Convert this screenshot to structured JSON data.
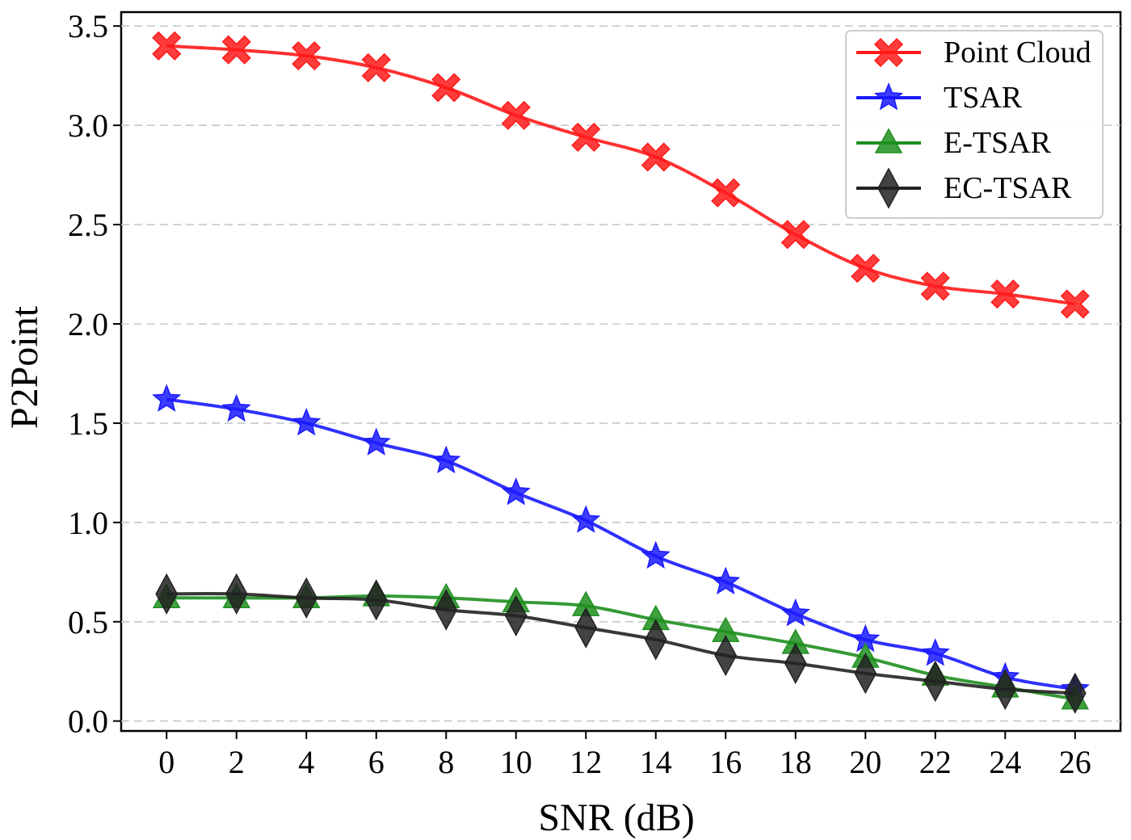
{
  "chart_data": {
    "type": "line",
    "title": "",
    "xlabel": "SNR (dB)",
    "ylabel": "P2Point",
    "x": [
      0,
      2,
      4,
      6,
      8,
      10,
      12,
      14,
      16,
      18,
      20,
      22,
      24,
      26
    ],
    "xticks": [
      "0",
      "2",
      "4",
      "6",
      "8",
      "10",
      "12",
      "14",
      "16",
      "18",
      "20",
      "22",
      "24",
      "26"
    ],
    "yticks": [
      0.0,
      0.5,
      1.0,
      1.5,
      2.0,
      2.5,
      3.0,
      3.5
    ],
    "ytick_labels": [
      "0.0",
      "0.5",
      "1.0",
      "1.5",
      "2.0",
      "2.5",
      "3.0",
      "3.5"
    ],
    "xlim": [
      -1.3,
      27.3
    ],
    "ylim": [
      -0.05,
      3.57
    ],
    "grid": "horizontal dashed",
    "legend_position": "top-right",
    "series": [
      {
        "name": "Point Cloud",
        "color": "#ff1a1a",
        "marker": "X",
        "values": [
          3.4,
          3.38,
          3.35,
          3.29,
          3.19,
          3.05,
          2.94,
          2.84,
          2.66,
          2.45,
          2.28,
          2.19,
          2.15,
          2.1
        ]
      },
      {
        "name": "TSAR",
        "color": "#1a1aff",
        "marker": "star",
        "values": [
          1.62,
          1.57,
          1.5,
          1.4,
          1.31,
          1.15,
          1.01,
          0.83,
          0.7,
          0.54,
          0.41,
          0.34,
          0.22,
          0.16
        ]
      },
      {
        "name": "E-TSAR",
        "color": "#1f8f1f",
        "marker": "triangle",
        "values": [
          0.62,
          0.62,
          0.62,
          0.63,
          0.62,
          0.6,
          0.58,
          0.51,
          0.45,
          0.39,
          0.32,
          0.23,
          0.17,
          0.11
        ]
      },
      {
        "name": "EC-TSAR",
        "color": "#222222",
        "marker": "diamond",
        "values": [
          0.64,
          0.64,
          0.62,
          0.61,
          0.56,
          0.53,
          0.47,
          0.41,
          0.33,
          0.29,
          0.24,
          0.2,
          0.16,
          0.14
        ]
      }
    ]
  }
}
